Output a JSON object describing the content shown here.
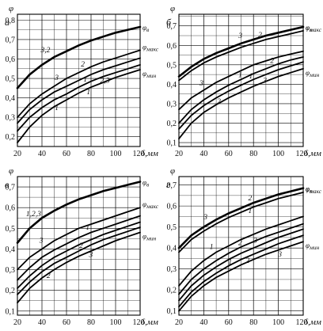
{
  "figure": {
    "panels": [
      {
        "letter": "а",
        "ylabel": "φ",
        "xlabel": "δ,мм",
        "y_ticks": [
          "0,2",
          "0,3",
          "0,4",
          "0,5",
          "0,6",
          "0,7",
          "0,8"
        ],
        "x_ticks": [
          "20",
          "40",
          "60",
          "80",
          "100",
          "120"
        ],
        "end_labels": [
          "φв",
          "φмакс",
          "φмин"
        ],
        "curve_labels": [
          "3,2",
          "3",
          "2",
          "1",
          "1",
          "1",
          "2,3"
        ]
      },
      {
        "letter": "б",
        "ylabel": "φ",
        "xlabel": "δ,мм",
        "y_ticks": [
          "0,1",
          "0,2",
          "0,3",
          "0,4",
          "0,5",
          "0,6",
          "0,7"
        ],
        "x_ticks": [
          "20",
          "40",
          "60",
          "80",
          "100",
          "120"
        ],
        "end_labels": [
          "φв",
          "φмакс",
          "φмин"
        ],
        "curve_labels": [
          "3",
          "2",
          "1",
          "3",
          "2",
          "1",
          "2",
          "3"
        ]
      },
      {
        "letter": "в",
        "ylabel": "φ",
        "xlabel": "δ,мм",
        "y_ticks": [
          "0,1",
          "0,2",
          "0,3",
          "0,4",
          "0,5",
          "0,6",
          "0,7"
        ],
        "x_ticks": [
          "20",
          "40",
          "60",
          "80",
          "100",
          "120"
        ],
        "end_labels": [
          "φв",
          "φмакс",
          "φмин"
        ],
        "curve_labels": [
          "1,2,3",
          "3",
          "1",
          "2",
          "2",
          "3"
        ]
      },
      {
        "letter": "г",
        "ylabel": "φ",
        "xlabel": "δ,мм",
        "y_ticks": [
          "0,1",
          "0,2",
          "0,3",
          "0,4",
          "0,5",
          "0,6",
          "0,7"
        ],
        "x_ticks": [
          "20",
          "40",
          "60",
          "80",
          "100",
          "120"
        ],
        "end_labels": [
          "φв",
          "φмакс",
          "φмин"
        ],
        "curve_labels": [
          "3",
          "2",
          "1",
          "1",
          "2",
          "3",
          "1",
          "2",
          "3"
        ]
      }
    ]
  },
  "chart_data": [
    {
      "type": "line",
      "panel": "а",
      "xlabel": "δ,мм",
      "ylabel": "φ",
      "xlim": [
        20,
        120
      ],
      "ylim": [
        0.15,
        0.83
      ],
      "x": [
        20,
        30,
        40,
        50,
        60,
        70,
        80,
        90,
        100,
        110,
        120
      ],
      "series": [
        {
          "name": "φв",
          "values": [
            0.45,
            0.52,
            0.57,
            0.61,
            0.64,
            0.67,
            0.695,
            0.715,
            0.735,
            0.75,
            0.765
          ]
        },
        {
          "values": [
            0.3,
            0.37,
            0.42,
            0.46,
            0.5,
            0.53,
            0.56,
            0.585,
            0.605,
            0.625,
            0.645
          ]
        },
        {
          "values": [
            0.27,
            0.34,
            0.39,
            0.43,
            0.46,
            0.49,
            0.52,
            0.545,
            0.565,
            0.585,
            0.605
          ]
        },
        {
          "values": [
            0.23,
            0.3,
            0.35,
            0.39,
            0.42,
            0.455,
            0.485,
            0.51,
            0.53,
            0.55,
            0.57
          ]
        },
        {
          "values": [
            0.17,
            0.25,
            0.31,
            0.355,
            0.39,
            0.425,
            0.455,
            0.48,
            0.505,
            0.525,
            0.545
          ]
        }
      ]
    },
    {
      "type": "line",
      "panel": "б",
      "xlabel": "δ,мм",
      "ylabel": "φ",
      "xlim": [
        20,
        120
      ],
      "ylim": [
        0.08,
        0.76
      ],
      "x": [
        20,
        30,
        40,
        50,
        60,
        70,
        80,
        90,
        100,
        110,
        120
      ],
      "series": [
        {
          "name": "φв",
          "values": [
            0.44,
            0.49,
            0.53,
            0.56,
            0.585,
            0.61,
            0.63,
            0.65,
            0.665,
            0.68,
            0.695
          ]
        },
        {
          "values": [
            0.42,
            0.47,
            0.51,
            0.54,
            0.565,
            0.59,
            0.61,
            0.63,
            0.645,
            0.66,
            0.675
          ]
        },
        {
          "values": [
            0.27,
            0.33,
            0.37,
            0.41,
            0.44,
            0.47,
            0.5,
            0.52,
            0.54,
            0.555,
            0.57
          ]
        },
        {
          "values": [
            0.2,
            0.27,
            0.32,
            0.36,
            0.395,
            0.425,
            0.455,
            0.48,
            0.505,
            0.525,
            0.54
          ]
        },
        {
          "values": [
            0.17,
            0.24,
            0.29,
            0.33,
            0.365,
            0.395,
            0.425,
            0.45,
            0.475,
            0.495,
            0.515
          ]
        },
        {
          "values": [
            0.12,
            0.2,
            0.255,
            0.295,
            0.33,
            0.36,
            0.39,
            0.415,
            0.44,
            0.46,
            0.48
          ]
        }
      ]
    },
    {
      "type": "line",
      "panel": "в",
      "xlabel": "δ,мм",
      "ylabel": "φ",
      "xlim": [
        20,
        120
      ],
      "ylim": [
        0.08,
        0.75
      ],
      "x": [
        20,
        30,
        40,
        50,
        60,
        70,
        80,
        90,
        100,
        110,
        120
      ],
      "series": [
        {
          "name": "φв",
          "values": [
            0.43,
            0.5,
            0.55,
            0.585,
            0.615,
            0.64,
            0.66,
            0.68,
            0.695,
            0.71,
            0.725
          ]
        },
        {
          "values": [
            0.3,
            0.36,
            0.4,
            0.44,
            0.47,
            0.5,
            0.52,
            0.54,
            0.56,
            0.58,
            0.6
          ]
        },
        {
          "values": [
            0.25,
            0.31,
            0.36,
            0.395,
            0.425,
            0.455,
            0.48,
            0.5,
            0.52,
            0.54,
            0.56
          ]
        },
        {
          "values": [
            0.21,
            0.27,
            0.32,
            0.36,
            0.39,
            0.42,
            0.445,
            0.47,
            0.49,
            0.51,
            0.53
          ]
        },
        {
          "values": [
            0.18,
            0.24,
            0.29,
            0.33,
            0.36,
            0.39,
            0.42,
            0.445,
            0.465,
            0.485,
            0.505
          ]
        },
        {
          "values": [
            0.14,
            0.21,
            0.26,
            0.3,
            0.335,
            0.365,
            0.39,
            0.415,
            0.44,
            0.46,
            0.48
          ]
        }
      ]
    },
    {
      "type": "line",
      "panel": "г",
      "xlabel": "δ,мм",
      "ylabel": "φ",
      "xlim": [
        20,
        120
      ],
      "ylim": [
        0.08,
        0.74
      ],
      "x": [
        20,
        30,
        40,
        50,
        60,
        70,
        80,
        90,
        100,
        110,
        120
      ],
      "series": [
        {
          "name": "φв",
          "values": [
            0.4,
            0.46,
            0.5,
            0.535,
            0.565,
            0.59,
            0.615,
            0.635,
            0.655,
            0.67,
            0.685
          ]
        },
        {
          "values": [
            0.38,
            0.44,
            0.48,
            0.515,
            0.545,
            0.57,
            0.595,
            0.615,
            0.635,
            0.65,
            0.665
          ]
        },
        {
          "values": [
            0.22,
            0.29,
            0.34,
            0.38,
            0.41,
            0.44,
            0.465,
            0.49,
            0.51,
            0.53,
            0.55
          ]
        },
        {
          "values": [
            0.18,
            0.25,
            0.3,
            0.34,
            0.375,
            0.405,
            0.43,
            0.455,
            0.475,
            0.495,
            0.515
          ]
        },
        {
          "values": [
            0.15,
            0.22,
            0.27,
            0.31,
            0.345,
            0.375,
            0.4,
            0.425,
            0.45,
            0.47,
            0.49
          ]
        },
        {
          "values": [
            0.12,
            0.19,
            0.24,
            0.28,
            0.315,
            0.345,
            0.37,
            0.395,
            0.42,
            0.44,
            0.46
          ]
        },
        {
          "values": [
            0.1,
            0.17,
            0.22,
            0.26,
            0.29,
            0.32,
            0.345,
            0.37,
            0.39,
            0.41,
            0.43
          ]
        }
      ]
    }
  ]
}
